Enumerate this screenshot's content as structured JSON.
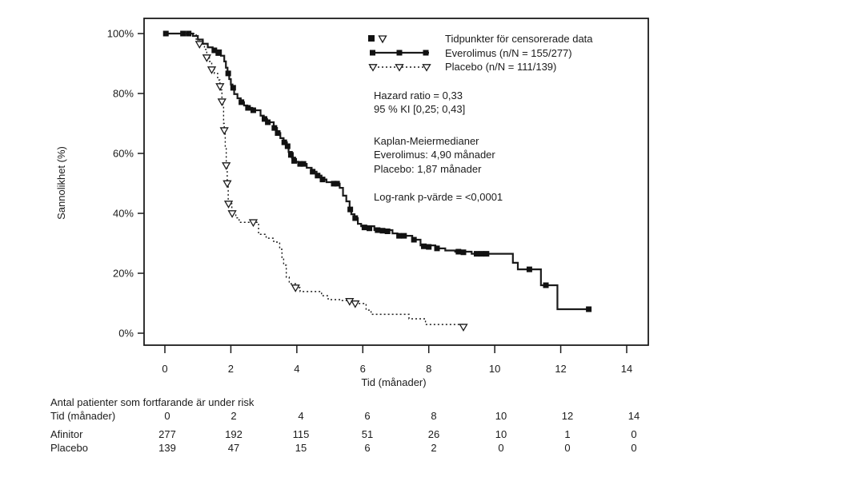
{
  "page": {
    "background": "#ffffff"
  },
  "colors": {
    "ink": "#1b1b1b",
    "marker_fill": "#111111",
    "open_marker_fill": "#ffffff"
  },
  "chart_data": {
    "type": "line",
    "subtype": "kaplan-meier-step",
    "title": "",
    "xlabel": "Tid (månader)",
    "ylabel": "Sannolikhet (%)",
    "xlim": [
      0,
      14
    ],
    "ylim": [
      0,
      100
    ],
    "grid": false,
    "legend_position": "top-center-inside",
    "x_ticks": [
      0,
      2,
      4,
      6,
      8,
      10,
      12,
      14
    ],
    "x_tick_labels": [
      "0",
      "2",
      "4",
      "6",
      "8",
      "10",
      "12",
      "14"
    ],
    "y_ticks": [
      0,
      20,
      40,
      60,
      80,
      100
    ],
    "y_tick_labels": [
      "0%",
      "20%",
      "40%",
      "60%",
      "80%",
      "100%"
    ],
    "legend": {
      "censored_label": "Tidpunkter för censorerade data",
      "series1_label": "Everolimus (n/N = 155/277)",
      "series2_label": "Placebo (n/N = 111/139)"
    },
    "series": [
      {
        "name": "Everolimus",
        "line": "solid",
        "marker": "filled-square",
        "steps_t_percent": [
          [
            0,
            100
          ],
          [
            0.85,
            99.2
          ],
          [
            1.0,
            98.0
          ],
          [
            1.15,
            96.6
          ],
          [
            1.3,
            95.4
          ],
          [
            1.45,
            94.4
          ],
          [
            1.7,
            92.6
          ],
          [
            1.8,
            90.7
          ],
          [
            1.85,
            88.6
          ],
          [
            1.9,
            86.7
          ],
          [
            1.95,
            84.8
          ],
          [
            2.0,
            83.0
          ],
          [
            2.05,
            81.9
          ],
          [
            2.1,
            79.8
          ],
          [
            2.2,
            78.4
          ],
          [
            2.3,
            77.1
          ],
          [
            2.4,
            76.0
          ],
          [
            2.5,
            75.2
          ],
          [
            2.65,
            74.4
          ],
          [
            2.9,
            72.6
          ],
          [
            3.0,
            71.5
          ],
          [
            3.1,
            70.4
          ],
          [
            3.3,
            68.5
          ],
          [
            3.4,
            66.8
          ],
          [
            3.5,
            65.1
          ],
          [
            3.6,
            63.7
          ],
          [
            3.7,
            62.4
          ],
          [
            3.75,
            60.5
          ],
          [
            3.85,
            58.6
          ],
          [
            3.95,
            57.2
          ],
          [
            4.05,
            56.5
          ],
          [
            4.3,
            55.2
          ],
          [
            4.45,
            53.9
          ],
          [
            4.6,
            52.6
          ],
          [
            4.75,
            51.3
          ],
          [
            4.9,
            50.4
          ],
          [
            5.1,
            49.9
          ],
          [
            5.3,
            48.5
          ],
          [
            5.4,
            45.9
          ],
          [
            5.5,
            44.0
          ],
          [
            5.6,
            41.3
          ],
          [
            5.65,
            39.7
          ],
          [
            5.75,
            38.4
          ],
          [
            5.85,
            36.5
          ],
          [
            5.95,
            35.7
          ],
          [
            6.35,
            34.4
          ],
          [
            6.9,
            33.3
          ],
          [
            7.05,
            32.5
          ],
          [
            7.5,
            31.2
          ],
          [
            7.75,
            29.3
          ],
          [
            8.2,
            28.3
          ],
          [
            8.5,
            27.6
          ],
          [
            8.8,
            27.2
          ],
          [
            9.3,
            26.5
          ],
          [
            10.55,
            23.5
          ],
          [
            10.7,
            21.3
          ],
          [
            11.4,
            16.0
          ],
          [
            11.9,
            8.0
          ],
          [
            12.85,
            8.0
          ]
        ],
        "censor_marks_t_percent": [
          [
            0.03,
            100
          ],
          [
            0.55,
            100
          ],
          [
            0.72,
            100
          ],
          [
            1.5,
            94.4
          ],
          [
            1.62,
            93.5
          ],
          [
            1.92,
            86.7
          ],
          [
            2.07,
            81.9
          ],
          [
            2.32,
            77.1
          ],
          [
            2.52,
            75.2
          ],
          [
            2.68,
            74.4
          ],
          [
            3.02,
            71.5
          ],
          [
            3.12,
            70.4
          ],
          [
            3.32,
            68.5
          ],
          [
            3.42,
            66.8
          ],
          [
            3.62,
            63.7
          ],
          [
            3.72,
            62.4
          ],
          [
            3.82,
            59.5
          ],
          [
            3.92,
            57.5
          ],
          [
            4.1,
            56.5
          ],
          [
            4.2,
            56.5
          ],
          [
            4.48,
            53.9
          ],
          [
            4.63,
            52.6
          ],
          [
            4.78,
            51.3
          ],
          [
            5.12,
            49.9
          ],
          [
            5.22,
            49.9
          ],
          [
            5.62,
            41.3
          ],
          [
            5.77,
            38.4
          ],
          [
            6.05,
            35.3
          ],
          [
            6.2,
            35.0
          ],
          [
            6.45,
            34.4
          ],
          [
            6.6,
            34.2
          ],
          [
            6.75,
            34.0
          ],
          [
            7.1,
            32.5
          ],
          [
            7.25,
            32.5
          ],
          [
            7.55,
            31.2
          ],
          [
            7.85,
            29.0
          ],
          [
            8.0,
            28.8
          ],
          [
            8.25,
            28.3
          ],
          [
            8.9,
            27.2
          ],
          [
            9.05,
            27.0
          ],
          [
            9.45,
            26.5
          ],
          [
            9.6,
            26.5
          ],
          [
            9.75,
            26.5
          ],
          [
            11.05,
            21.3
          ],
          [
            11.55,
            16.0
          ],
          [
            12.85,
            8.0
          ]
        ]
      },
      {
        "name": "Placebo",
        "line": "dotted",
        "marker": "open-triangle-down",
        "steps_t_percent": [
          [
            0,
            100
          ],
          [
            0.95,
            97.9
          ],
          [
            1.05,
            96.5
          ],
          [
            1.2,
            94.7
          ],
          [
            1.27,
            92.0
          ],
          [
            1.35,
            90.7
          ],
          [
            1.42,
            88.0
          ],
          [
            1.5,
            86.7
          ],
          [
            1.6,
            84.5
          ],
          [
            1.67,
            82.4
          ],
          [
            1.7,
            81.2
          ],
          [
            1.73,
            77.3
          ],
          [
            1.76,
            75.7
          ],
          [
            1.78,
            70.0
          ],
          [
            1.8,
            67.7
          ],
          [
            1.83,
            62.0
          ],
          [
            1.86,
            56.0
          ],
          [
            1.89,
            50.0
          ],
          [
            1.92,
            43.2
          ],
          [
            2.03,
            40.0
          ],
          [
            2.15,
            38.5
          ],
          [
            2.25,
            37.0
          ],
          [
            2.84,
            33.0
          ],
          [
            3.07,
            31.7
          ],
          [
            3.3,
            30.4
          ],
          [
            3.48,
            28.0
          ],
          [
            3.55,
            25.3
          ],
          [
            3.6,
            22.7
          ],
          [
            3.68,
            18.7
          ],
          [
            3.77,
            16.5
          ],
          [
            3.96,
            15.2
          ],
          [
            4.1,
            13.9
          ],
          [
            4.75,
            12.5
          ],
          [
            4.95,
            11.2
          ],
          [
            5.35,
            10.9
          ],
          [
            5.6,
            10.7
          ],
          [
            5.75,
            9.9
          ],
          [
            6.1,
            7.7
          ],
          [
            6.25,
            6.3
          ],
          [
            7.4,
            4.8
          ],
          [
            7.9,
            2.9
          ],
          [
            9.05,
            2.1
          ]
        ],
        "censor_marks_t_percent": [
          [
            1.05,
            96.5
          ],
          [
            1.27,
            92.0
          ],
          [
            1.42,
            88.0
          ],
          [
            1.67,
            82.4
          ],
          [
            1.73,
            77.3
          ],
          [
            1.8,
            67.7
          ],
          [
            1.86,
            56.0
          ],
          [
            1.89,
            50.0
          ],
          [
            1.93,
            43.2
          ],
          [
            2.04,
            40.0
          ],
          [
            2.68,
            37.0
          ],
          [
            3.96,
            15.2
          ],
          [
            5.6,
            10.7
          ],
          [
            5.77,
            9.9
          ],
          [
            9.05,
            2.1
          ]
        ]
      }
    ]
  },
  "stats_annotations": {
    "hazard_ratio": "Hazard ratio = 0,33",
    "confidence_interval": "95 % KI [0,25; 0,43]",
    "km_medians_header": "Kaplan-Meiermedianer",
    "km_median_everolimus": "Everolimus: 4,90 månader",
    "km_median_placebo": "Placebo: 1,87 månader",
    "log_rank": "Log-rank p-värde = <0,0001"
  },
  "risk_table": {
    "title": "Antal patienter som fortfarande är under risk",
    "time_columns": [
      0,
      2,
      4,
      6,
      8,
      10,
      12,
      14
    ],
    "rows": [
      {
        "label": "Tid (månader)",
        "values": [
          "0",
          "2",
          "4",
          "6",
          "8",
          "10",
          "12",
          "14"
        ]
      },
      {
        "label": "Afinitor",
        "values": [
          "277",
          "192",
          "115",
          "51",
          "26",
          "10",
          "1",
          "0"
        ]
      },
      {
        "label": "Placebo",
        "values": [
          "139",
          "47",
          "15",
          "6",
          "2",
          "0",
          "0",
          "0"
        ]
      }
    ]
  }
}
